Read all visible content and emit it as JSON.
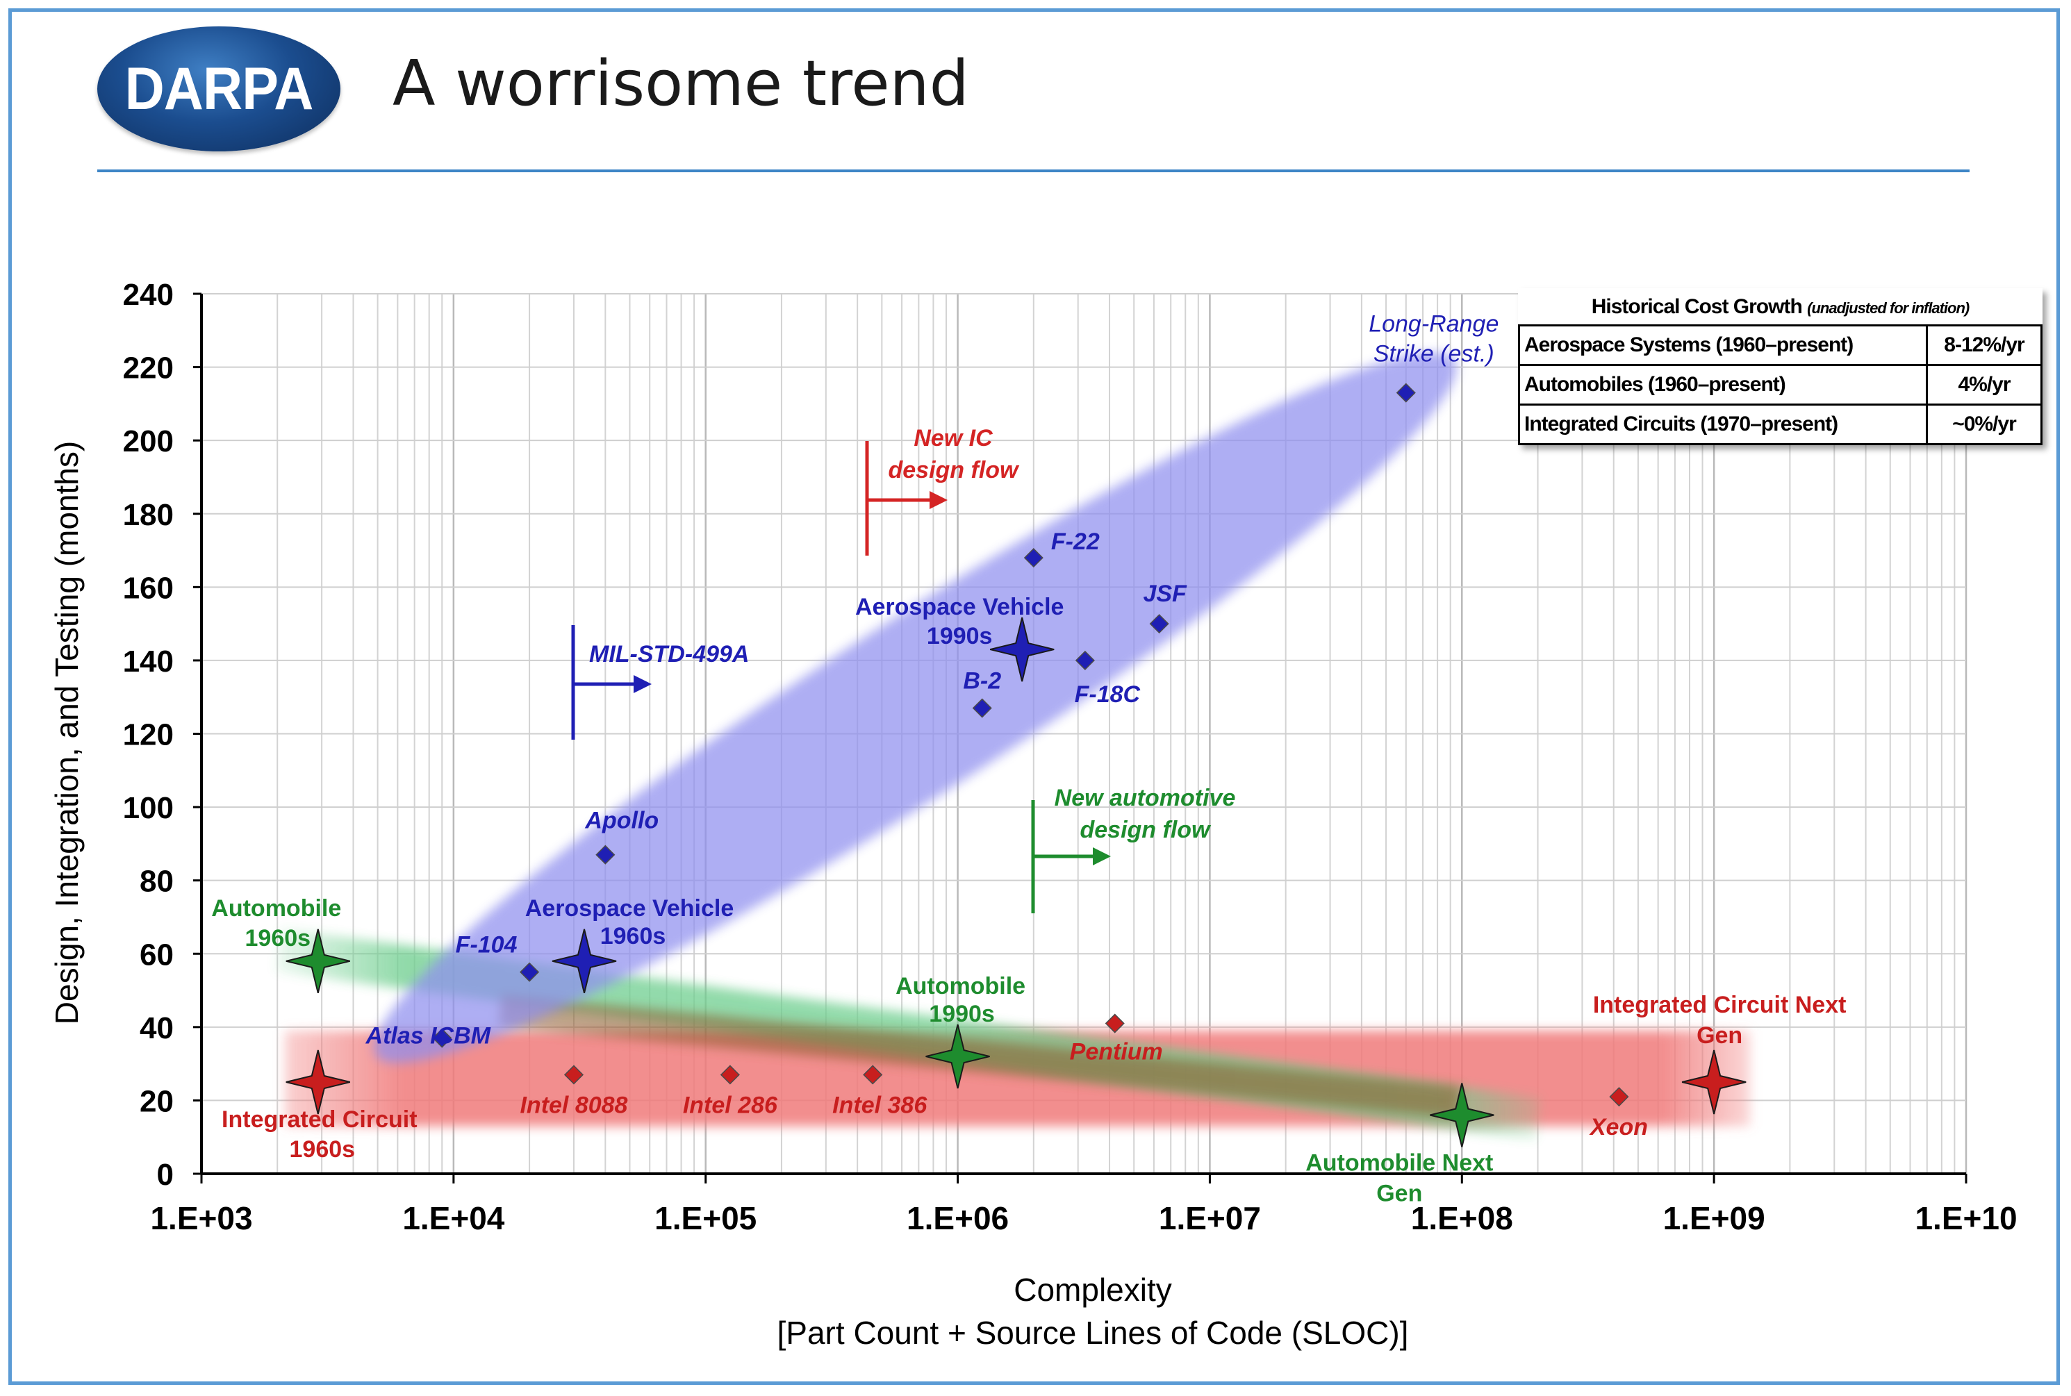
{
  "header": {
    "logo_text": "DARPA",
    "title": "A worrisome trend"
  },
  "table": {
    "title": "Historical Cost Growth",
    "title_note": "(unadjusted for inflation)",
    "rows": [
      {
        "label": "Aerospace Systems  (1960–present)",
        "value": "8-12%/yr"
      },
      {
        "label": "Automobiles (1960–present)",
        "value": "4%/yr"
      },
      {
        "label": "Integrated Circuits (1970–present)",
        "value": "~0%/yr"
      }
    ]
  },
  "colors": {
    "aerospace": "#1f1fb4",
    "automobile": "#1e8c2e",
    "ic": "#c81e1e",
    "aerospace_band": "#8f8fef",
    "automobile_band": "#6fcf8f",
    "ic_band": "#f07a7a"
  },
  "chart_data": {
    "type": "scatter",
    "xscale": "log",
    "xlabel": "Complexity",
    "xlabel2": "[Part Count + Source Lines of Code (SLOC)]",
    "ylabel": "Design, Integration, and Testing (months)",
    "xlim": [
      1000,
      10000000000
    ],
    "ylim": [
      0,
      240
    ],
    "xticks": [
      {
        "value": 1000,
        "label": "1.E+03"
      },
      {
        "value": 10000,
        "label": "1.E+04"
      },
      {
        "value": 100000,
        "label": "1.E+05"
      },
      {
        "value": 1000000,
        "label": "1.E+06"
      },
      {
        "value": 10000000,
        "label": "1.E+07"
      },
      {
        "value": 100000000,
        "label": "1.E+08"
      },
      {
        "value": 1000000000,
        "label": "1.E+09"
      },
      {
        "value": 10000000000,
        "label": "1.E+10"
      }
    ],
    "yticks": [
      0,
      20,
      40,
      60,
      80,
      100,
      120,
      140,
      160,
      180,
      200,
      220,
      240
    ],
    "series": [
      {
        "name": "Aerospace",
        "color": "#1f1fb4",
        "points": [
          {
            "label": "Atlas ICBM",
            "x": 9000,
            "y": 37
          },
          {
            "label": "F-104",
            "x": 20000,
            "y": 55
          },
          {
            "label": "Apollo",
            "x": 40000,
            "y": 87
          },
          {
            "label": "B-2",
            "x": 1250000,
            "y": 127
          },
          {
            "label": "F-22",
            "x": 2000000,
            "y": 168
          },
          {
            "label": "F-18C",
            "x": 3200000,
            "y": 140
          },
          {
            "label": "JSF",
            "x": 6300000,
            "y": 150
          },
          {
            "label": "Long-Range Strike (est.)",
            "x": 60000000,
            "y": 213
          }
        ]
      },
      {
        "name": "Integrated Circuits",
        "color": "#c81e1e",
        "points": [
          {
            "label": "Intel 8088",
            "x": 30000,
            "y": 27
          },
          {
            "label": "Intel 286",
            "x": 125000,
            "y": 27
          },
          {
            "label": "Intel 386",
            "x": 460000,
            "y": 27
          },
          {
            "label": "Pentium",
            "x": 4200000,
            "y": 41
          },
          {
            "label": "Xeon",
            "x": 420000000,
            "y": 21
          }
        ]
      }
    ],
    "milestones": [
      {
        "label": "Aerospace Vehicle 1960s",
        "x": 33000,
        "y": 58,
        "color": "#1f1fb4"
      },
      {
        "label": "Aerospace Vehicle 1990s",
        "x": 1800000,
        "y": 143,
        "color": "#1f1fb4"
      },
      {
        "label": "Automobile 1960s",
        "x": 2900,
        "y": 58,
        "color": "#1e8c2e"
      },
      {
        "label": "Automobile 1990s",
        "x": 1000000,
        "y": 32,
        "color": "#1e8c2e"
      },
      {
        "label": "Automobile Next Gen",
        "x": 100000000,
        "y": 16,
        "color": "#1e8c2e"
      },
      {
        "label": "Integrated Circuit 1960s",
        "x": 2900,
        "y": 25,
        "color": "#c81e1e"
      },
      {
        "label": "Integrated Circuit Next Gen",
        "x": 1000000000,
        "y": 25,
        "color": "#c81e1e"
      }
    ],
    "annotations": [
      {
        "label": "MIL-STD-499A",
        "x": 30000,
        "y": 133,
        "color": "#1f1fb4"
      },
      {
        "label": "New IC design flow",
        "x": 450000,
        "y": 178,
        "color": "#c81e1e"
      },
      {
        "label": "New automotive design flow",
        "x": 2000000,
        "y": 85,
        "color": "#1e8c2e"
      }
    ]
  }
}
